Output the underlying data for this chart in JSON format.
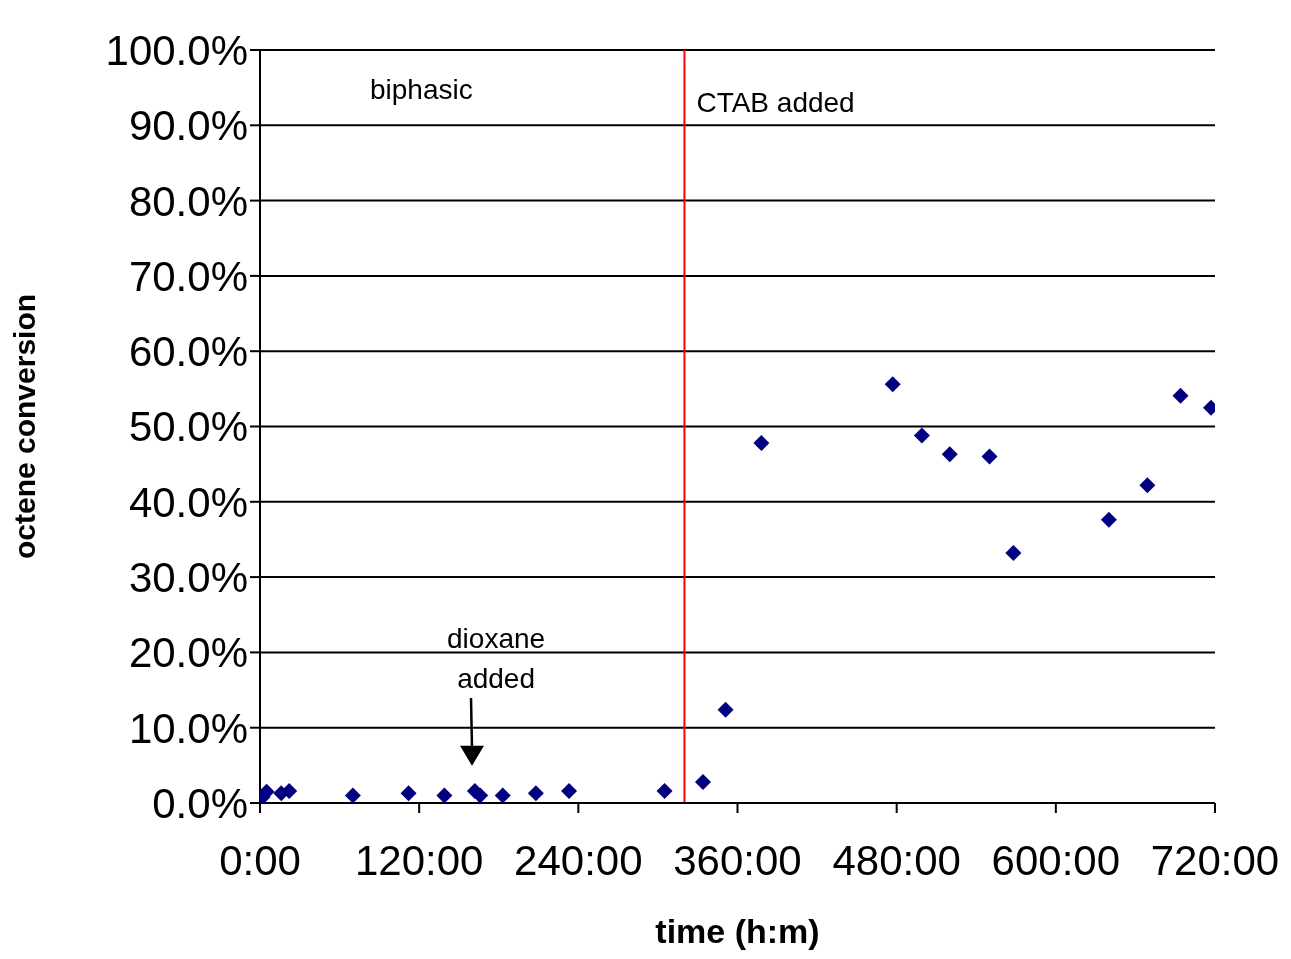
{
  "chart_data": {
    "type": "scatter",
    "xlabel": "time (h:m)",
    "ylabel": "octene conversion",
    "x": [
      2,
      5,
      16,
      22,
      70,
      112,
      139,
      162,
      166,
      183,
      208,
      233,
      305,
      334,
      351,
      378,
      477,
      499,
      520,
      550,
      568,
      640,
      669,
      694,
      717
    ],
    "series": [
      {
        "color": "#000080",
        "values": [
          0.8,
          1.5,
          1.3,
          1.6,
          1.0,
          1.3,
          1.0,
          1.6,
          1.0,
          1.0,
          1.3,
          1.6,
          1.6,
          2.8,
          12.4,
          47.8,
          55.6,
          48.8,
          46.3,
          46.0,
          33.2,
          37.6,
          42.2,
          54.1,
          52.5
        ]
      }
    ],
    "xlim": [
      0,
      720
    ],
    "xticks": [
      {
        "value": 0,
        "label": "0:00"
      },
      {
        "value": 120,
        "label": "120:00"
      },
      {
        "value": 240,
        "label": "240:00"
      },
      {
        "value": 360,
        "label": "360:00"
      },
      {
        "value": 480,
        "label": "480:00"
      },
      {
        "value": 600,
        "label": "600:00"
      },
      {
        "value": 720,
        "label": "720:00"
      }
    ],
    "ylim": [
      0,
      100
    ],
    "yticks": [
      {
        "value": 0,
        "label": "0.0%"
      },
      {
        "value": 10,
        "label": "10.0%"
      },
      {
        "value": 20,
        "label": "20.0%"
      },
      {
        "value": 30,
        "label": "30.0%"
      },
      {
        "value": 40,
        "label": "40.0%"
      },
      {
        "value": 50,
        "label": "50.0%"
      },
      {
        "value": 60,
        "label": "60.0%"
      },
      {
        "value": 70,
        "label": "70.0%"
      },
      {
        "value": 80,
        "label": "80.0%"
      },
      {
        "value": 90,
        "label": "90.0%"
      },
      {
        "value": 100,
        "label": "100.0%"
      }
    ],
    "grid": "y",
    "legend": false,
    "marker": "diamond",
    "ref_lines": [
      {
        "axis": "x",
        "value": 320,
        "label": "CTAB added",
        "color": "#ff0000"
      }
    ],
    "annotations": [
      "biphasic",
      "dioxane added"
    ]
  }
}
